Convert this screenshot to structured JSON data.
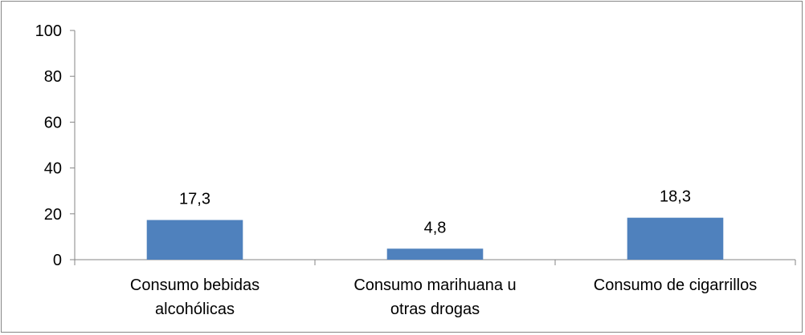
{
  "chart_data": {
    "type": "bar",
    "categories": [
      [
        "Consumo bebidas",
        "alcohólicas"
      ],
      [
        "Consumo marihuana u",
        "otras drogas"
      ],
      [
        "Consumo de cigarrillos"
      ]
    ],
    "values": [
      17.3,
      4.8,
      18.3
    ],
    "data_labels": [
      "17,3",
      "4,8",
      "18,3"
    ],
    "ylim": [
      0,
      100
    ],
    "yticks": [
      0,
      20,
      40,
      60,
      80,
      100
    ],
    "bar_color": "#4f81bd",
    "axis_color": "#868686",
    "grid": false,
    "legend": "none",
    "title": "",
    "xlabel": "",
    "ylabel": ""
  }
}
